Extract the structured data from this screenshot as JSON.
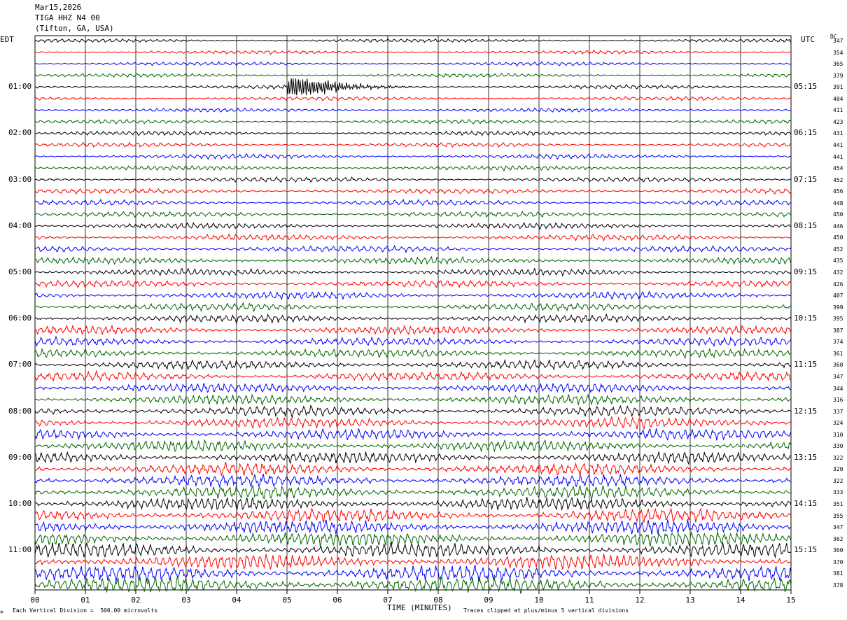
{
  "header": {
    "date": "Mar15,2026",
    "station": "TIGA HHZ N4 00",
    "location": "(Tifton, GA, USA)"
  },
  "left_timezone": "EDT",
  "right_timezone": "UTC",
  "dc_header": "DC",
  "footer": {
    "scale_note": "Each Vertical Division =  500.00 microvolts",
    "clip_note": "Traces clipped at plus/minus 5 vertical divisions",
    "x_axis_label": "TIME (MINUTES)",
    "mark": "✡"
  },
  "chart_data": {
    "type": "line",
    "title": "TIGA HHZ N4 00",
    "xlabel": "TIME (MINUTES)",
    "xlim": [
      0,
      15
    ],
    "x_ticks": [
      "00",
      "01",
      "02",
      "03",
      "04",
      "05",
      "06",
      "07",
      "08",
      "09",
      "10",
      "11",
      "12",
      "13",
      "14",
      "15"
    ],
    "trace_colors": [
      "#000000",
      "#ff0000",
      "#0000ff",
      "#006400"
    ],
    "left_hour_labels": [
      "01:00",
      "02:00",
      "03:00",
      "04:00",
      "05:00",
      "06:00",
      "07:00",
      "08:00",
      "09:00",
      "10:00",
      "11:00"
    ],
    "right_hour_labels": [
      "05:15",
      "06:15",
      "07:15",
      "08:15",
      "09:15",
      "10:15",
      "11:15",
      "12:15",
      "13:15",
      "14:15",
      "15:15"
    ],
    "dc_offsets": [
      347,
      354,
      365,
      379,
      391,
      404,
      411,
      423,
      431,
      441,
      441,
      454,
      452,
      456,
      448,
      450,
      446,
      450,
      452,
      435,
      432,
      426,
      407,
      399,
      395,
      387,
      374,
      361,
      360,
      347,
      344,
      316,
      337,
      324,
      310,
      330,
      322,
      320,
      322,
      333,
      351,
      355,
      347,
      362,
      360,
      370,
      381,
      378
    ],
    "event": {
      "trace_index": 4,
      "start_minute": 5.0,
      "peak_minute": 5.4
    }
  }
}
